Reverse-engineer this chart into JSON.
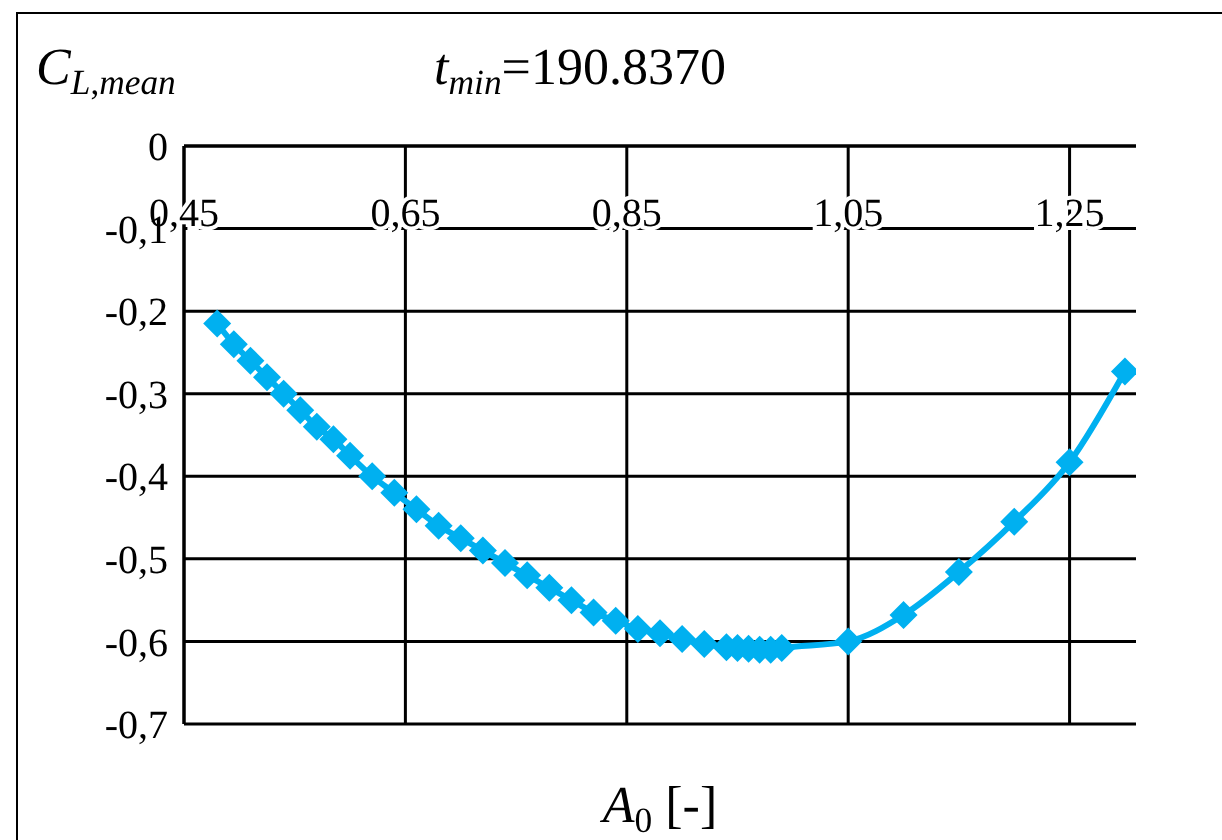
{
  "chart_data": {
    "type": "line",
    "title": "t$_{min}$=190.8370",
    "ylabel": "C$_{L,mean}$",
    "xlabel": "A$_{0}$ [-]",
    "x": [
      0.48,
      0.495,
      0.51,
      0.525,
      0.54,
      0.555,
      0.57,
      0.585,
      0.6,
      0.62,
      0.64,
      0.66,
      0.68,
      0.7,
      0.72,
      0.74,
      0.76,
      0.78,
      0.8,
      0.82,
      0.84,
      0.86,
      0.88,
      0.9,
      0.92,
      0.94,
      0.95,
      0.96,
      0.97,
      0.98,
      0.99,
      1.05,
      1.1,
      1.15,
      1.2,
      1.25,
      1.3
    ],
    "series": [
      {
        "color": "#00b0f0",
        "values": [
          -0.215,
          -0.24,
          -0.26,
          -0.28,
          -0.3,
          -0.32,
          -0.34,
          -0.355,
          -0.375,
          -0.4,
          -0.42,
          -0.44,
          -0.46,
          -0.475,
          -0.49,
          -0.505,
          -0.52,
          -0.535,
          -0.55,
          -0.565,
          -0.575,
          -0.585,
          -0.59,
          -0.597,
          -0.603,
          -0.607,
          -0.608,
          -0.609,
          -0.61,
          -0.61,
          -0.608,
          -0.6,
          -0.568,
          -0.516,
          -0.455,
          -0.383,
          -0.273
        ]
      }
    ],
    "xlim": [
      0.45,
      1.31
    ],
    "xticks": [
      {
        "value": 0.45,
        "label": "0,45"
      },
      {
        "value": 0.65,
        "label": "0,65"
      },
      {
        "value": 0.85,
        "label": "0,85"
      },
      {
        "value": 1.05,
        "label": "1,05"
      },
      {
        "value": 1.25,
        "label": "1,25"
      }
    ],
    "ylim": [
      -0.7,
      0
    ],
    "yticks": [
      0,
      {
        "value": -0.1,
        "label": "-0,1"
      },
      {
        "value": -0.2,
        "label": "-0,2"
      },
      {
        "value": -0.3,
        "label": "-0,3"
      },
      {
        "value": -0.4,
        "label": "-0,4"
      },
      {
        "value": -0.5,
        "label": "-0,5"
      },
      {
        "value": -0.6,
        "label": "-0,6"
      },
      {
        "value": -0.7,
        "label": "-0,7"
      }
    ],
    "grid": true,
    "marker": "diamond",
    "line_style": "solid"
  }
}
